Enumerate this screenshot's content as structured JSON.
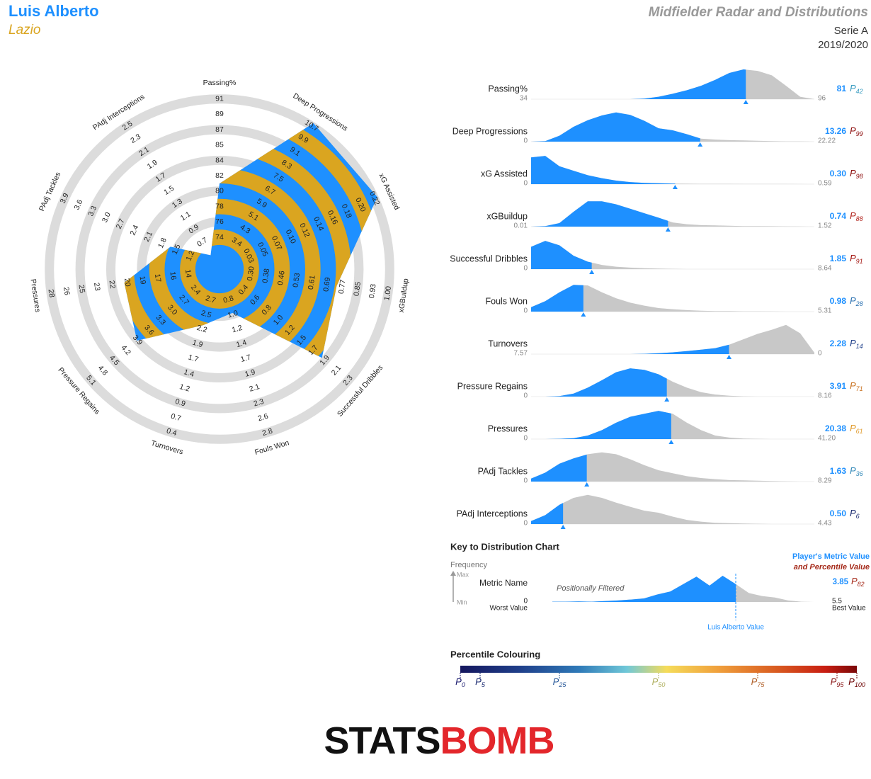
{
  "header": {
    "player": "Luis Alberto",
    "team": "Lazio",
    "title": "Midfielder Radar and Distributions",
    "league": "Serie A",
    "season": "2019/2020"
  },
  "chart_data": [
    {
      "type": "radar",
      "fill_color": "#1e90ff",
      "band_color": "#daa520",
      "ring_color": "#dcdcdc",
      "axes": [
        {
          "name": "Passing%",
          "ticks": [
            74,
            76,
            78,
            80,
            82,
            84,
            85,
            87,
            89,
            91
          ]
        },
        {
          "name": "Deep Progressions",
          "ticks": [
            3.4,
            4.3,
            5.1,
            5.9,
            6.7,
            7.5,
            8.3,
            9.1,
            9.9,
            10.7
          ]
        },
        {
          "name": "xG Assisted",
          "ticks": [
            0.03,
            0.05,
            0.07,
            {
              "value": 0.1,
              "label": "0.10"
            },
            0.12,
            0.14,
            0.16,
            0.18,
            {
              "value": 0.2,
              "label": "0.20"
            },
            0.22
          ]
        },
        {
          "name": "xGBuildup",
          "ticks": [
            {
              "value": 0.3,
              "label": "0.30"
            },
            0.38,
            0.46,
            0.53,
            0.61,
            0.69,
            0.77,
            0.85,
            0.93,
            {
              "value": 1,
              "label": "1.00"
            }
          ]
        },
        {
          "name": "Successful Dribbles",
          "ticks": [
            0.4,
            0.6,
            0.8,
            {
              "value": 1,
              "label": "1.0"
            },
            1.2,
            1.5,
            1.7,
            1.9,
            2.1,
            2.3
          ]
        },
        {
          "name": "Fouls Won",
          "ticks": [
            0.8,
            {
              "value": 1,
              "label": "1.0"
            },
            1.2,
            1.4,
            1.7,
            1.9,
            2.1,
            2.3,
            2.6,
            2.8
          ]
        },
        {
          "name": "Turnovers",
          "ticks": [
            2.7,
            2.5,
            2.2,
            1.9,
            1.7,
            1.4,
            1.2,
            0.9,
            0.7,
            0.4
          ]
        },
        {
          "name": "Pressure Regains",
          "ticks": [
            2.4,
            2.7,
            {
              "value": 3,
              "label": "3.0"
            },
            3.3,
            3.6,
            3.9,
            4.2,
            4.5,
            4.8,
            5.1
          ]
        },
        {
          "name": "Pressures",
          "ticks": [
            14,
            16,
            17,
            19,
            20,
            22,
            23,
            25,
            26,
            28
          ]
        },
        {
          "name": "PAdj Tackles",
          "ticks": [
            1.2,
            1.5,
            1.8,
            2.1,
            2.4,
            2.7,
            {
              "value": 3,
              "label": "3.0"
            },
            3.3,
            3.6,
            3.9
          ]
        },
        {
          "name": "PAdj Interceptions",
          "ticks": [
            0.7,
            0.9,
            1.1,
            1.3,
            1.5,
            1.7,
            1.9,
            2.1,
            2.3,
            2.5
          ]
        }
      ],
      "values": [
        81,
        13.26,
        0.3,
        0.74,
        1.85,
        0.98,
        2.28,
        3.91,
        20.38,
        1.63,
        0.5
      ]
    },
    {
      "type": "distribution",
      "percentile_prefix": "P",
      "value_color": "#1e90ff",
      "lower_color": "#1e90ff",
      "upper_color": "#c8c8c8",
      "rows": [
        {
          "name": "Passing%",
          "left": 34,
          "right": 96,
          "value": 81,
          "percentile": 42,
          "percentile_color": "#3a9cc0",
          "density": [
            0,
            0,
            0,
            0,
            0,
            0,
            0,
            0,
            0.02,
            0.08,
            0.18,
            0.3,
            0.45,
            0.65,
            0.88,
            1,
            0.95,
            0.8,
            0.45,
            0.08,
            0
          ]
        },
        {
          "name": "Deep Progressions",
          "left": 0,
          "right": 22.22,
          "value": 13.26,
          "percentile": 99,
          "percentile_color": "#8b0a0a",
          "density": [
            0,
            0.02,
            0.2,
            0.5,
            0.72,
            0.88,
            0.98,
            0.9,
            0.7,
            0.45,
            0.38,
            0.25,
            0.1,
            0.07,
            0.05,
            0.04,
            0.03,
            0.02,
            0.01,
            0.01,
            0
          ]
        },
        {
          "name": "xG Assisted",
          "left": 0,
          "right": 0.59,
          "value": 0.3,
          "value_label": "0.30",
          "percentile": 98,
          "percentile_color": "#8b0a0a",
          "density": [
            0.9,
            0.95,
            0.6,
            0.45,
            0.3,
            0.2,
            0.12,
            0.07,
            0.04,
            0.03,
            0.02,
            0.015,
            0.01,
            0.01,
            0.01,
            0.005,
            0.005,
            0.005,
            0.005,
            0.003,
            0
          ]
        },
        {
          "name": "xGBuildup",
          "left": 0.01,
          "right": 1.52,
          "value": 0.74,
          "percentile": 88,
          "percentile_color": "#b0201a",
          "density": [
            0,
            0.02,
            0.12,
            0.5,
            0.85,
            0.85,
            0.75,
            0.6,
            0.45,
            0.3,
            0.14,
            0.08,
            0.05,
            0.04,
            0.03,
            0.02,
            0.02,
            0.015,
            0.01,
            0.005,
            0
          ]
        },
        {
          "name": "Successful Dribbles",
          "left": 0,
          "right": 8.64,
          "value": 1.85,
          "percentile": 91,
          "percentile_color": "#a3140f",
          "density": [
            0.75,
            0.95,
            0.8,
            0.45,
            0.25,
            0.14,
            0.08,
            0.05,
            0.03,
            0.02,
            0.01,
            0,
            0,
            0,
            0,
            0,
            0,
            0,
            0,
            0,
            0
          ]
        },
        {
          "name": "Fouls Won",
          "left": 0,
          "right": 5.31,
          "value": 0.98,
          "percentile": 28,
          "percentile_color": "#2a70b0",
          "density": [
            0.15,
            0.35,
            0.65,
            0.9,
            0.88,
            0.65,
            0.45,
            0.3,
            0.2,
            0.12,
            0.08,
            0.05,
            0.03,
            0.02,
            0.02,
            0.01,
            0.01,
            0.005,
            0,
            0,
            0
          ]
        },
        {
          "name": "Turnovers",
          "left": 7.57,
          "right": 0,
          "value": 2.28,
          "percentile": 14,
          "percentile_color": "#1f3f8a",
          "density": [
            0,
            0,
            0,
            0,
            0,
            0,
            0,
            0,
            0.01,
            0.03,
            0.06,
            0.1,
            0.15,
            0.2,
            0.32,
            0.5,
            0.68,
            0.82,
            0.98,
            0.7,
            0.05
          ]
        },
        {
          "name": "Pressure Regains",
          "left": 0,
          "right": 8.16,
          "value": 3.91,
          "percentile": 71,
          "percentile_color": "#c8701e",
          "density": [
            0,
            0,
            0.02,
            0.1,
            0.3,
            0.55,
            0.82,
            0.95,
            0.9,
            0.75,
            0.5,
            0.3,
            0.15,
            0.07,
            0.03,
            0.01,
            0,
            0,
            0,
            0,
            0
          ]
        },
        {
          "name": "Pressures",
          "left": 0,
          "right": 41.2,
          "right_label": "41.20",
          "value": 20.38,
          "percentile": 61,
          "percentile_color": "#e09a2a",
          "density": [
            0,
            0,
            0.01,
            0.03,
            0.12,
            0.3,
            0.55,
            0.75,
            0.85,
            0.95,
            0.85,
            0.55,
            0.3,
            0.12,
            0.05,
            0.02,
            0.01,
            0,
            0,
            0,
            0
          ]
        },
        {
          "name": "PAdj Tackles",
          "left": 0,
          "right": 8.29,
          "value": 1.63,
          "percentile": 36,
          "percentile_color": "#3288b8",
          "density": [
            0.1,
            0.3,
            0.6,
            0.78,
            0.92,
            0.98,
            0.92,
            0.75,
            0.55,
            0.38,
            0.28,
            0.18,
            0.12,
            0.08,
            0.05,
            0.04,
            0.03,
            0.02,
            0.01,
            0,
            0
          ]
        },
        {
          "name": "PAdj Interceptions",
          "left": 0,
          "right": 4.43,
          "value": 0.5,
          "value_label": "0.50",
          "percentile": 6,
          "percentile_color": "#1a2a70",
          "density": [
            0.1,
            0.3,
            0.65,
            0.88,
            0.98,
            0.88,
            0.72,
            0.58,
            0.45,
            0.38,
            0.25,
            0.14,
            0.08,
            0.04,
            0.03,
            0.02,
            0.01,
            0,
            0,
            0,
            0
          ]
        }
      ]
    }
  ],
  "key": {
    "title": "Key to Distribution Chart",
    "frequency": "Frequency",
    "max": "Max",
    "min": "Min",
    "metric_name": "Metric Name",
    "left": 0,
    "left_caption": "Worst Value",
    "right": 5.5,
    "right_caption": "Best Value",
    "filter_note": "Positionally Filtered",
    "value_caption": "Player's Metric Value",
    "percentile_caption": "and Percentile Value",
    "value": 3.85,
    "percentile": 82,
    "percentile_color": "#a52a1a",
    "marker_caption": "Luis Alberto Value",
    "density": [
      0.01,
      0.01,
      0.02,
      0.01,
      0.03,
      0.05,
      0.08,
      0.12,
      0.25,
      0.35,
      0.6,
      0.85,
      0.55,
      0.88,
      0.6,
      0.3,
      0.2,
      0.15,
      0.05,
      0.01,
      0
    ]
  },
  "percentile_colouring": {
    "title": "Percentile Colouring",
    "prefix": "P",
    "xlim": [
      0,
      100
    ],
    "ticks": [
      0,
      5,
      25,
      50,
      75,
      95,
      100
    ],
    "tick_colors": [
      "#1a1a6e",
      "#1a2a70",
      "#2a5a9a",
      "#b0b060",
      "#b0602a",
      "#8b1a1a",
      "#6b0000"
    ],
    "stops": [
      {
        "offset": 0,
        "color": "#15175e"
      },
      {
        "offset": 0.15,
        "color": "#1f3f8a"
      },
      {
        "offset": 0.3,
        "color": "#2f7ab8"
      },
      {
        "offset": 0.42,
        "color": "#70c8d8"
      },
      {
        "offset": 0.52,
        "color": "#f5dc5a"
      },
      {
        "offset": 0.65,
        "color": "#f0a03c"
      },
      {
        "offset": 0.8,
        "color": "#d85a20"
      },
      {
        "offset": 0.92,
        "color": "#c81e12"
      },
      {
        "offset": 1,
        "color": "#7a0808"
      }
    ]
  },
  "logo": {
    "parts": [
      {
        "text": "STATS",
        "color": "#111111"
      },
      {
        "text": "BOMB",
        "color": "#e3262b"
      }
    ]
  }
}
